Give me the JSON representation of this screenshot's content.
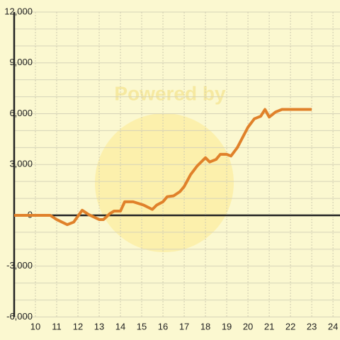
{
  "chart_data": {
    "type": "line",
    "watermark": "Powered by",
    "x": [
      9,
      10.7,
      11,
      11.5,
      11.8,
      12.2,
      12.5,
      13,
      13.2,
      13.5,
      13.7,
      14,
      14.2,
      14.6,
      15.1,
      15.5,
      15.7,
      16,
      16.2,
      16.5,
      16.8,
      17,
      17.3,
      17.6,
      18,
      18.2,
      18.5,
      18.7,
      19,
      19.2,
      19.5,
      20,
      20.3,
      20.6,
      20.8,
      21,
      21.3,
      21.6,
      22,
      23
    ],
    "series": [
      {
        "color": "#e0812a",
        "values": [
          0,
          0,
          -250,
          -550,
          -400,
          300,
          50,
          -250,
          -250,
          100,
          250,
          250,
          800,
          800,
          600,
          350,
          600,
          800,
          1100,
          1150,
          1400,
          1700,
          2400,
          2900,
          3400,
          3150,
          3300,
          3600,
          3600,
          3500,
          4000,
          5200,
          5700,
          5850,
          6250,
          5800,
          6100,
          6250,
          6250,
          6250
        ]
      }
    ],
    "xlim": [
      9,
      24.33
    ],
    "xticks": [
      10,
      11,
      12,
      13,
      14,
      15,
      16,
      17,
      18,
      19,
      20,
      21,
      22,
      23,
      24
    ],
    "ylim": [
      -6000,
      12000
    ],
    "yticks": [
      {
        "value": -6000,
        "label": "-6,000"
      },
      {
        "value": -3000,
        "label": "-3,000"
      },
      0,
      {
        "value": 3000,
        "label": "3,000"
      },
      {
        "value": 6000,
        "label": "6,000"
      },
      {
        "value": 9000,
        "label": "9,000"
      },
      {
        "value": 12000,
        "label": "12,000"
      }
    ],
    "y_minor_ticks": [
      -5000,
      -4000,
      -2000,
      -1000,
      1000,
      2000,
      4000,
      5000,
      7000,
      8000,
      10000,
      11000
    ],
    "grid": true
  }
}
